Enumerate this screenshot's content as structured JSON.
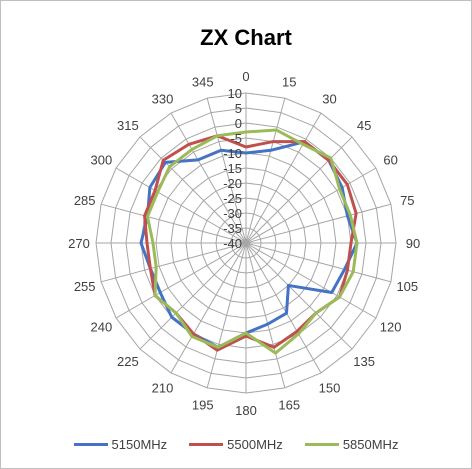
{
  "chart_data": {
    "type": "radar",
    "title": "ZX Chart",
    "angle_labels": [
      "0",
      "15",
      "30",
      "45",
      "60",
      "75",
      "90",
      "105",
      "120",
      "135",
      "150",
      "165",
      "180",
      "195",
      "210",
      "225",
      "240",
      "255",
      "270",
      "285",
      "300",
      "315",
      "330",
      "345"
    ],
    "radial_ticks": [
      "10",
      "5",
      "0",
      "-5",
      "-10",
      "-15",
      "-20",
      "-25",
      "-30",
      "-35",
      "-40"
    ],
    "rlim": [
      -40,
      10
    ],
    "grid": true,
    "legend_position": "bottom",
    "series": [
      {
        "name": "5150MHz",
        "color": "#4472c4",
        "values": [
          -10,
          -8,
          -1,
          -1,
          -3,
          -5,
          -3,
          -6,
          -7,
          -20,
          -13,
          -12,
          -10,
          -4,
          -5,
          -5,
          -7,
          -7,
          -5,
          -6,
          -3,
          -2,
          -8,
          -8
        ]
      },
      {
        "name": "5500MHz",
        "color": "#c0504d",
        "values": [
          -8,
          -5,
          -1,
          -1,
          -1,
          -2,
          -5,
          -5,
          -4,
          -7,
          -6,
          -4,
          -9,
          -3,
          -5,
          -7,
          -5,
          -7,
          -7,
          -5,
          -5,
          -1,
          -2,
          -3
        ]
      },
      {
        "name": "5850MHz",
        "color": "#9bbb59",
        "values": [
          -3,
          -1,
          -2,
          0,
          -4,
          -4,
          -3,
          -3,
          -4,
          -7,
          -5,
          -2,
          -10,
          -4,
          -4,
          -7,
          -5,
          -9,
          -9,
          -6,
          -6,
          -4,
          -4,
          -3
        ]
      }
    ]
  }
}
